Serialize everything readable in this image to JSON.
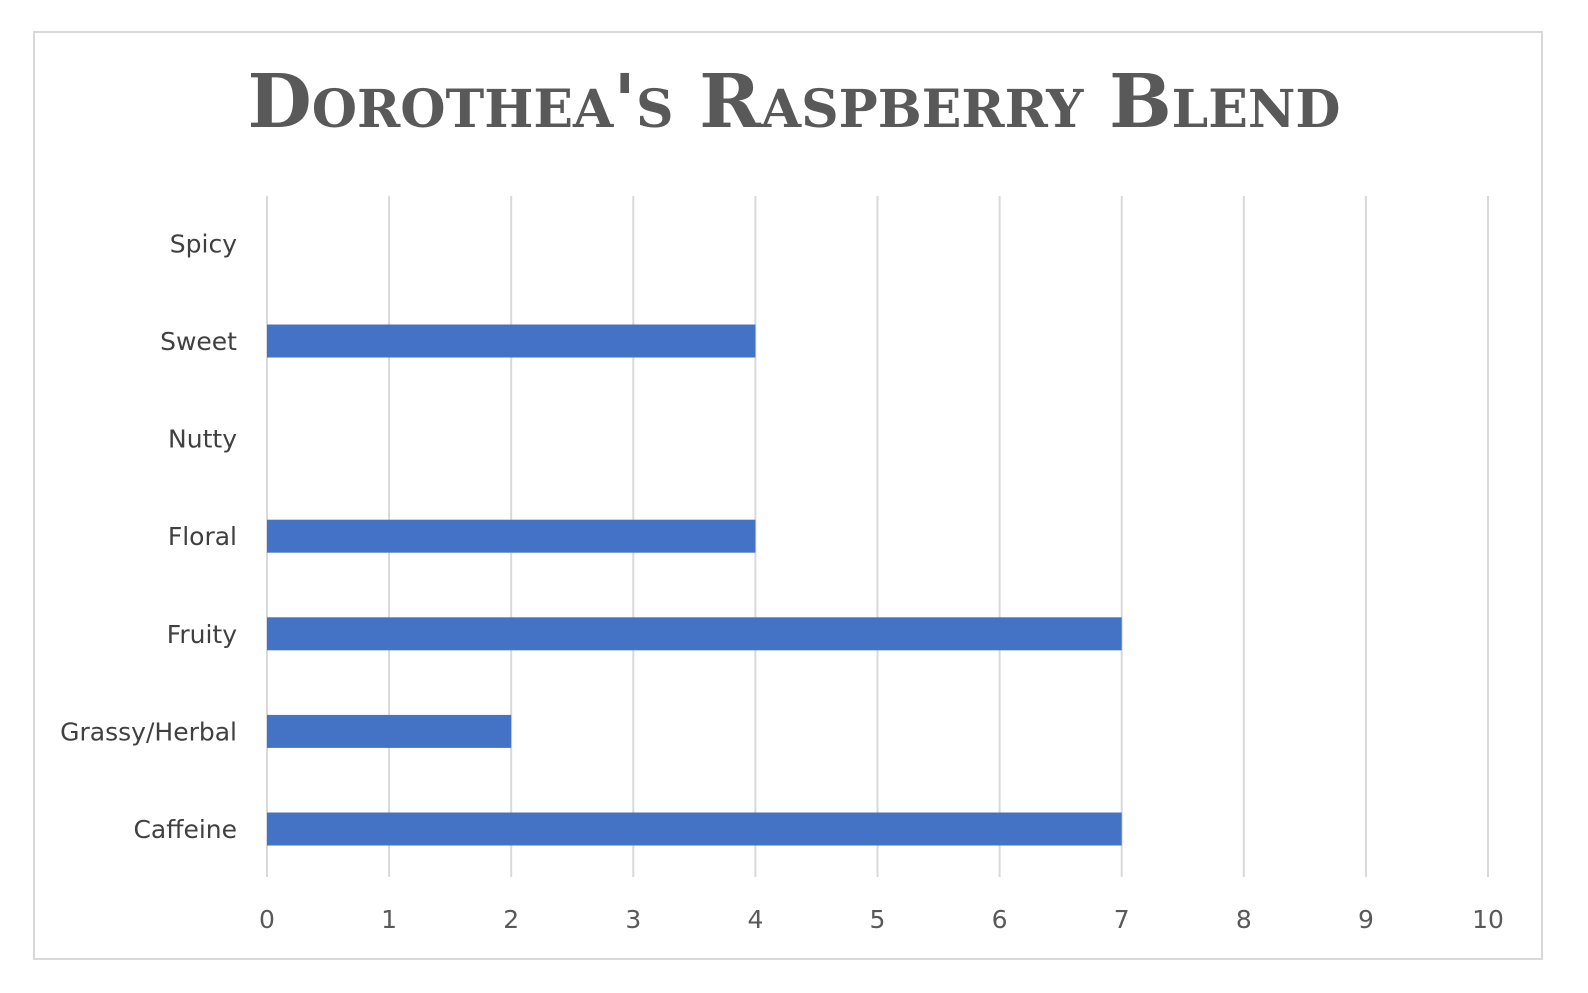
{
  "chart_data": {
    "type": "bar",
    "orientation": "horizontal",
    "title": "Dorothea's Raspberry Blend",
    "categories": [
      "Caffeine",
      "Grassy/Herbal",
      "Fruity",
      "Floral",
      "Nutty",
      "Sweet",
      "Spicy"
    ],
    "values": [
      7,
      2,
      7,
      4,
      0,
      4,
      0
    ],
    "xlabel": "",
    "ylabel": "",
    "xlim": [
      0,
      10
    ],
    "x_ticks": [
      "0",
      "1",
      "2",
      "3",
      "4",
      "5",
      "6",
      "7",
      "8",
      "9",
      "10"
    ],
    "grid": "vertical",
    "legend": "none",
    "bar_color": "#4472c4",
    "gridline_color": "#d9d9d9"
  }
}
